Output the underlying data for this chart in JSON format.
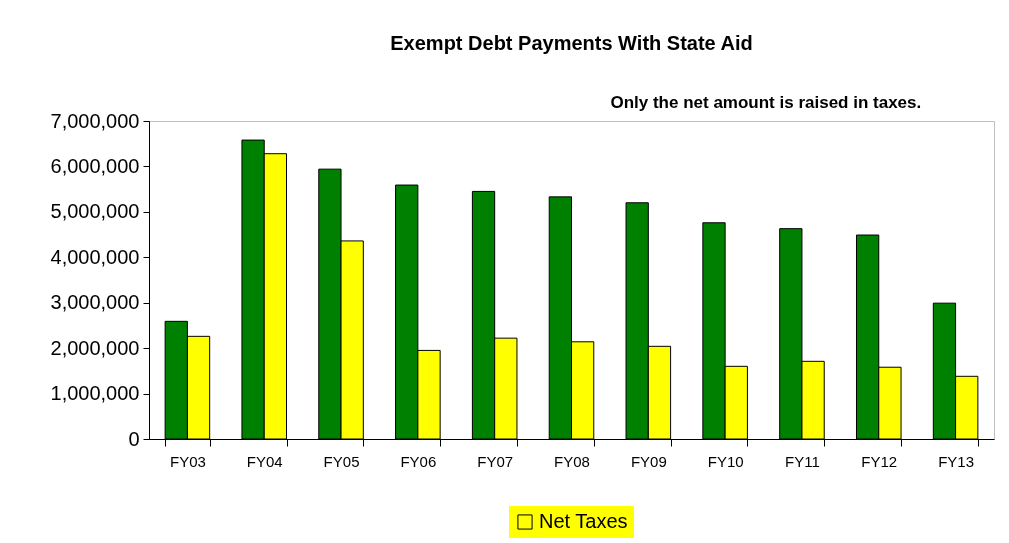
{
  "chart_data": {
    "type": "bar",
    "title": "Exempt Debt Payments With State Aid",
    "categories": [
      "FY03",
      "FY04",
      "FY05",
      "FY06",
      "FY07",
      "FY08",
      "FY09",
      "FY10",
      "FY11",
      "FY12",
      "FY13"
    ],
    "series": [
      {
        "color": "#008000",
        "values": [
          2590000,
          6580000,
          5940000,
          5590000,
          5450000,
          5330000,
          5200000,
          4760000,
          4630000,
          4490000,
          2990000
        ]
      },
      {
        "name": "Net Taxes",
        "color": "#ffff00",
        "values": [
          2260000,
          6280000,
          4360000,
          1950000,
          2220000,
          2140000,
          2040000,
          1600000,
          1710000,
          1580000,
          1380000
        ]
      }
    ],
    "ylim": [
      0,
      7000000
    ],
    "yticks": [
      0,
      {
        "value": 1000000,
        "label": "1,000,000"
      },
      {
        "value": 2000000,
        "label": "2,000,000"
      },
      {
        "value": 3000000,
        "label": "3,000,000"
      },
      {
        "value": 4000000,
        "label": "4,000,000"
      },
      {
        "value": 5000000,
        "label": "5,000,000"
      },
      {
        "value": 6000000,
        "label": "6,000,000"
      },
      {
        "value": 7000000,
        "label": "7,000,000"
      }
    ],
    "annotations": [
      "Only the net amount is raised in taxes."
    ],
    "legend": "bottom",
    "grid": false
  }
}
